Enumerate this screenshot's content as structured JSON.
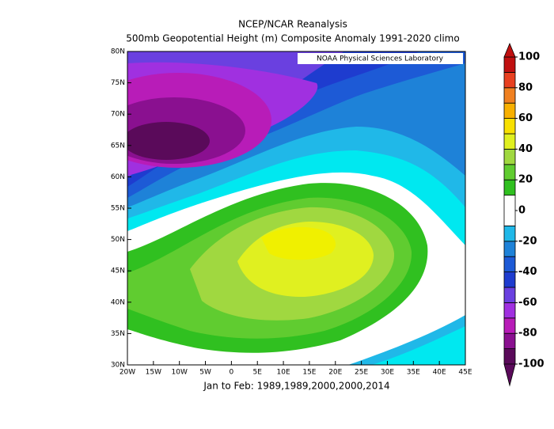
{
  "chart_data": {
    "type": "map",
    "title": "NCEP/NCAR Reanalysis",
    "subtitle": "500mb Geopotential Height (m) Composite Anomaly 1991-2020 climo",
    "credit": "NOAA Physical Sciences Laboratory",
    "caption": "Jan to Feb: 1989,1989,2000,2000,2014",
    "xlim": [
      -20,
      45
    ],
    "xticks": [
      {
        "value": -20,
        "label": "20W"
      },
      {
        "value": -15,
        "label": "15W"
      },
      {
        "value": -10,
        "label": "10W"
      },
      {
        "value": -5,
        "label": "5W"
      },
      0,
      {
        "value": 5,
        "label": "5E"
      },
      {
        "value": 10,
        "label": "10E"
      },
      {
        "value": 15,
        "label": "15E"
      },
      {
        "value": 20,
        "label": "20E"
      },
      {
        "value": 25,
        "label": "25E"
      },
      {
        "value": 30,
        "label": "30E"
      },
      {
        "value": 35,
        "label": "35E"
      },
      {
        "value": 40,
        "label": "40E"
      },
      {
        "value": 45,
        "label": "45E"
      }
    ],
    "ylim": [
      30,
      80
    ],
    "yticks": [
      {
        "value": 30,
        "label": "30N"
      },
      {
        "value": 35,
        "label": "35N"
      },
      {
        "value": 40,
        "label": "40N"
      },
      {
        "value": 45,
        "label": "45N"
      },
      {
        "value": 50,
        "label": "50N"
      },
      {
        "value": 55,
        "label": "55N"
      },
      {
        "value": 60,
        "label": "60N"
      },
      {
        "value": 65,
        "label": "65N"
      },
      {
        "value": 70,
        "label": "70N"
      },
      {
        "value": 75,
        "label": "75N"
      },
      {
        "value": 80,
        "label": "80N"
      }
    ],
    "colorbar": {
      "lim": [
        -100,
        100
      ],
      "ticks": [
        -100,
        -80,
        -60,
        -40,
        -20,
        0,
        20,
        40,
        60,
        80,
        100
      ],
      "bounds": [
        -100,
        -90,
        -80,
        -70,
        -60,
        -50,
        -40,
        -30,
        -20,
        -10,
        10,
        20,
        30,
        40,
        50,
        60,
        70,
        80,
        90,
        100
      ],
      "colors": [
        "#5a0a5a",
        "#8a1090",
        "#b81cb8",
        "#a030e0",
        "#6a40e0",
        "#1e3ccf",
        "#1d5ad6",
        "#1e82d8",
        "#20b8e8",
        "#ffffff",
        "#30c020",
        "#60cc30",
        "#a0d840",
        "#e0f020",
        "#f8e000",
        "#f8b000",
        "#f08020",
        "#e84020",
        "#c01010"
      ]
    }
  }
}
